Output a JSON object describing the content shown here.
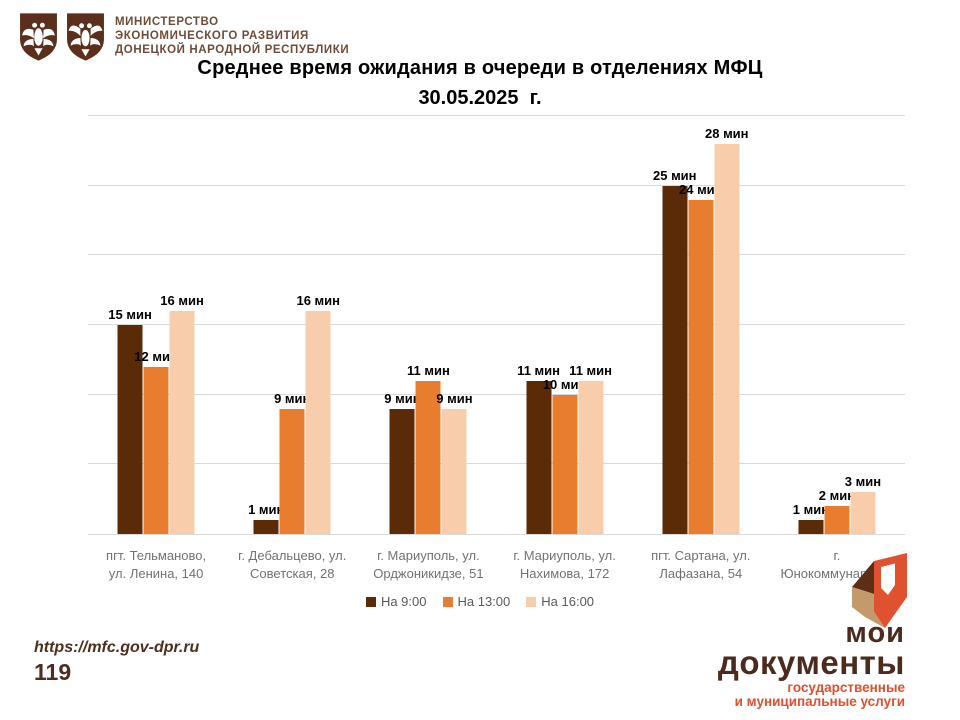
{
  "header": {
    "ministry_lines": [
      "МИНИСТЕРСТВО",
      "ЭКОНОМИЧЕСКОГО РАЗВИТИЯ",
      "ДОНЕЦКОЙ НАРОДНОЙ РЕСПУБЛИКИ"
    ],
    "title_line1": "Среднее время ожидания в очереди в отделениях МФЦ",
    "title_line2": "30.05.2025  г."
  },
  "chart_data": {
    "type": "bar",
    "title": "Среднее время ожидания в очереди в отделениях МФЦ 30.05.2025 г.",
    "categories": [
      "пгт. Тельманово, ул. Ленина, 140",
      "г. Дебальцево, ул. Советская, 28",
      "г. Мариуполь, ул. Орджоникидзе, 51",
      "г. Мариуполь, ул. Нахимова, 172",
      "пгт. Сартана, ул. Лафазана, 54",
      "г. Юнокоммунаровск"
    ],
    "category_lines": [
      [
        "пгт. Тельманово,",
        "ул. Ленина, 140"
      ],
      [
        "г. Дебальцево, ул.",
        "Советская, 28"
      ],
      [
        "г. Мариуполь, ул.",
        "Орджоникидзе, 51"
      ],
      [
        "г. Мариуполь, ул.",
        "Нахимова, 172"
      ],
      [
        "пгт. Сартана, ул.",
        "Лафазана, 54"
      ],
      [
        "г.",
        "Юнокоммунаровск"
      ]
    ],
    "series": [
      {
        "name": "На 9:00",
        "color": "#5B2B07",
        "values": [
          15,
          1,
          9,
          11,
          25,
          1
        ]
      },
      {
        "name": "На 13:00",
        "color": "#E87D2F",
        "values": [
          12,
          9,
          11,
          10,
          24,
          2
        ]
      },
      {
        "name": "На 16:00",
        "color": "#F8CDAC",
        "values": [
          16,
          16,
          9,
          11,
          28,
          3
        ]
      }
    ],
    "unit_suffix": " мин",
    "ylabel": "",
    "xlabel": "",
    "ylim": [
      0,
      30
    ],
    "grid_step": 5,
    "grid": true,
    "legend_position": "bottom"
  },
  "footer": {
    "url": "https://mfc.gov-dpr.ru",
    "number": "119"
  },
  "brand": {
    "line1": "мои",
    "line2": "документы",
    "sub1": "государственные",
    "sub2": "и муниципальные услуги"
  },
  "colors": {
    "series_dark": "#5B2B07",
    "series_orange": "#E87D2F",
    "series_peach": "#F8CDAC",
    "gridline": "#D9D9D9",
    "category_text": "#767171",
    "legend_text": "#595959",
    "ministry_text": "#6F4C3A",
    "footer_text": "#4E2F1F",
    "brand_brown": "#4A2B1E",
    "brand_red": "#DF4F2D"
  }
}
